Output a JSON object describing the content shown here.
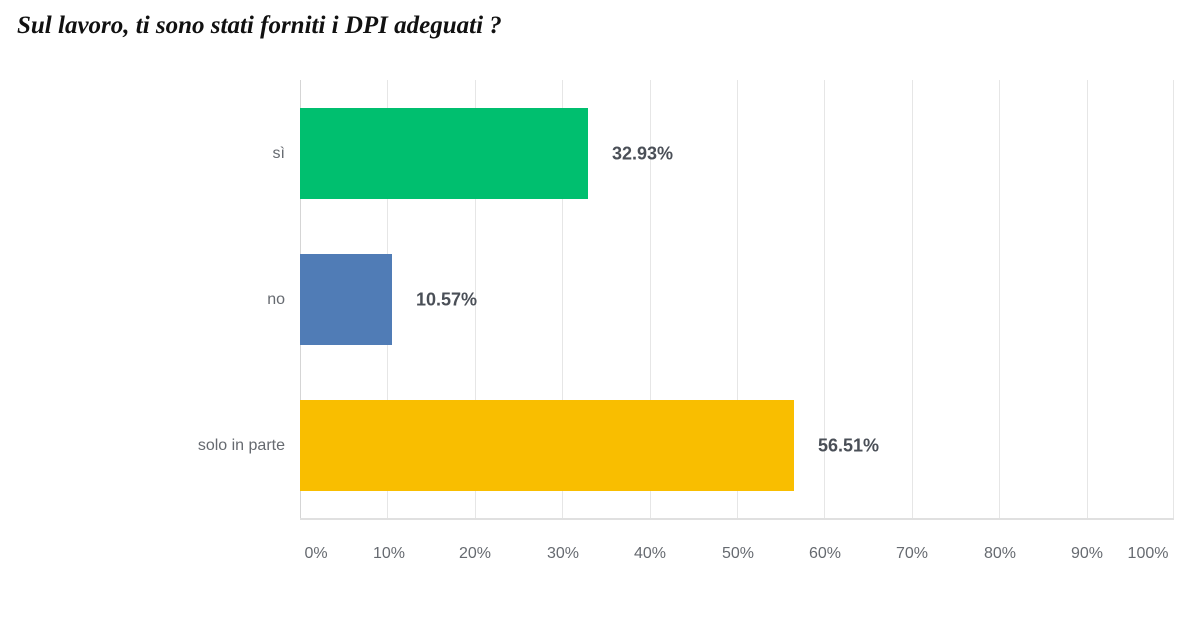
{
  "header": {
    "title": "Sul lavoro, ti sono stati forniti i DPI adeguati ?"
  },
  "chart_data": {
    "type": "bar",
    "orientation": "horizontal",
    "title": "Sul lavoro, ti sono stati forniti i DPI adeguati ?",
    "categories": [
      "sì",
      "no",
      "solo in parte"
    ],
    "values": [
      32.93,
      10.57,
      56.51
    ],
    "value_labels": [
      "32.93%",
      "10.57%",
      "56.51%"
    ],
    "colors": [
      "#00bf6f",
      "#507cb6",
      "#f9be00"
    ],
    "xlabel": "",
    "ylabel": "",
    "xlim": [
      0,
      100
    ],
    "x_ticks": [
      "0%",
      "10%",
      "20%",
      "30%",
      "40%",
      "50%",
      "60%",
      "70%",
      "80%",
      "90%",
      "100%"
    ],
    "grid": true,
    "legend": "none"
  }
}
